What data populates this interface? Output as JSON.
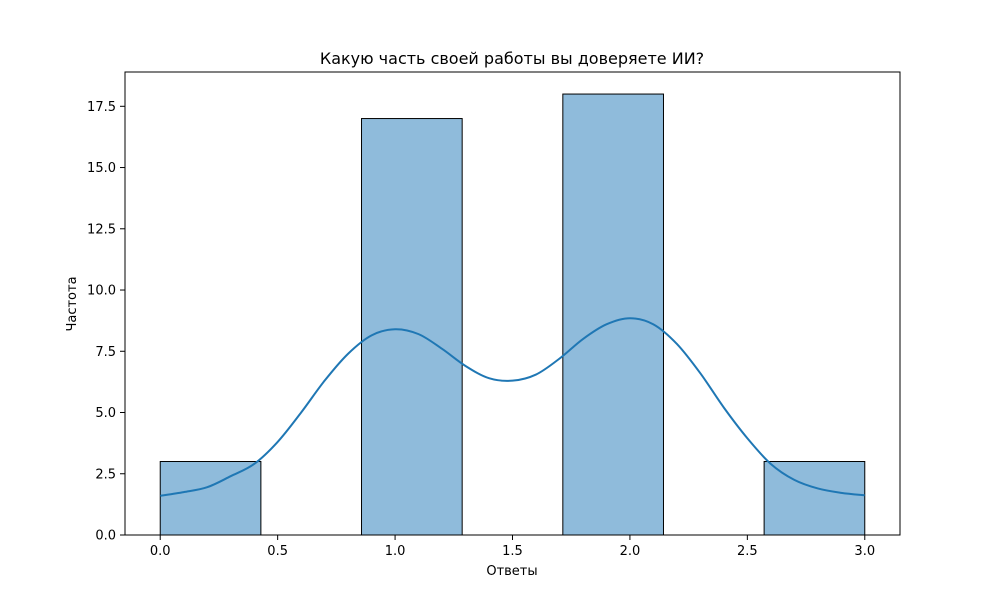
{
  "chart_data": {
    "type": "bar",
    "title": "Какую часть своей работы вы доверяете ИИ?",
    "xlabel": "Ответы",
    "ylabel": "Частота",
    "xlim": [
      -0.15,
      3.15
    ],
    "ylim": [
      0,
      18.9
    ],
    "bins": [
      {
        "x0": 0.0,
        "x1": 0.4286,
        "count": 3
      },
      {
        "x0": 0.4286,
        "x1": 0.8571,
        "count": 0
      },
      {
        "x0": 0.8571,
        "x1": 1.2857,
        "count": 17
      },
      {
        "x0": 1.2857,
        "x1": 1.7143,
        "count": 0
      },
      {
        "x0": 1.7143,
        "x1": 2.1429,
        "count": 18
      },
      {
        "x0": 2.1429,
        "x1": 2.5714,
        "count": 0
      },
      {
        "x0": 2.5714,
        "x1": 3.0,
        "count": 3
      }
    ],
    "kde": {
      "x": [
        0.0,
        0.1,
        0.2,
        0.3,
        0.4,
        0.5,
        0.6,
        0.7,
        0.8,
        0.9,
        1.0,
        1.1,
        1.2,
        1.3,
        1.4,
        1.5,
        1.6,
        1.7,
        1.8,
        1.9,
        2.0,
        2.1,
        2.2,
        2.3,
        2.4,
        2.5,
        2.6,
        2.7,
        2.8,
        2.9,
        3.0
      ],
      "y": [
        1.6,
        1.75,
        1.95,
        2.4,
        2.9,
        3.8,
        5.0,
        6.3,
        7.4,
        8.15,
        8.4,
        8.2,
        7.6,
        6.9,
        6.4,
        6.3,
        6.55,
        7.2,
        8.0,
        8.6,
        8.85,
        8.6,
        7.8,
        6.6,
        5.2,
        3.95,
        2.9,
        2.25,
        1.9,
        1.72,
        1.62
      ]
    },
    "xticks": [
      0.0,
      0.5,
      1.0,
      1.5,
      2.0,
      2.5,
      3.0
    ],
    "xtick_labels": [
      "0.0",
      "0.5",
      "1.0",
      "1.5",
      "2.0",
      "2.5",
      "3.0"
    ],
    "yticks": [
      0.0,
      2.5,
      5.0,
      7.5,
      10.0,
      12.5,
      15.0,
      17.5
    ],
    "ytick_labels": [
      "0.0",
      "2.5",
      "5.0",
      "7.5",
      "10.0",
      "12.5",
      "15.0",
      "17.5"
    ],
    "grid": false,
    "colors": {
      "bar_fill": "#8fbbdb",
      "bar_edge": "#000000",
      "kde_line": "#1f77b4"
    }
  }
}
